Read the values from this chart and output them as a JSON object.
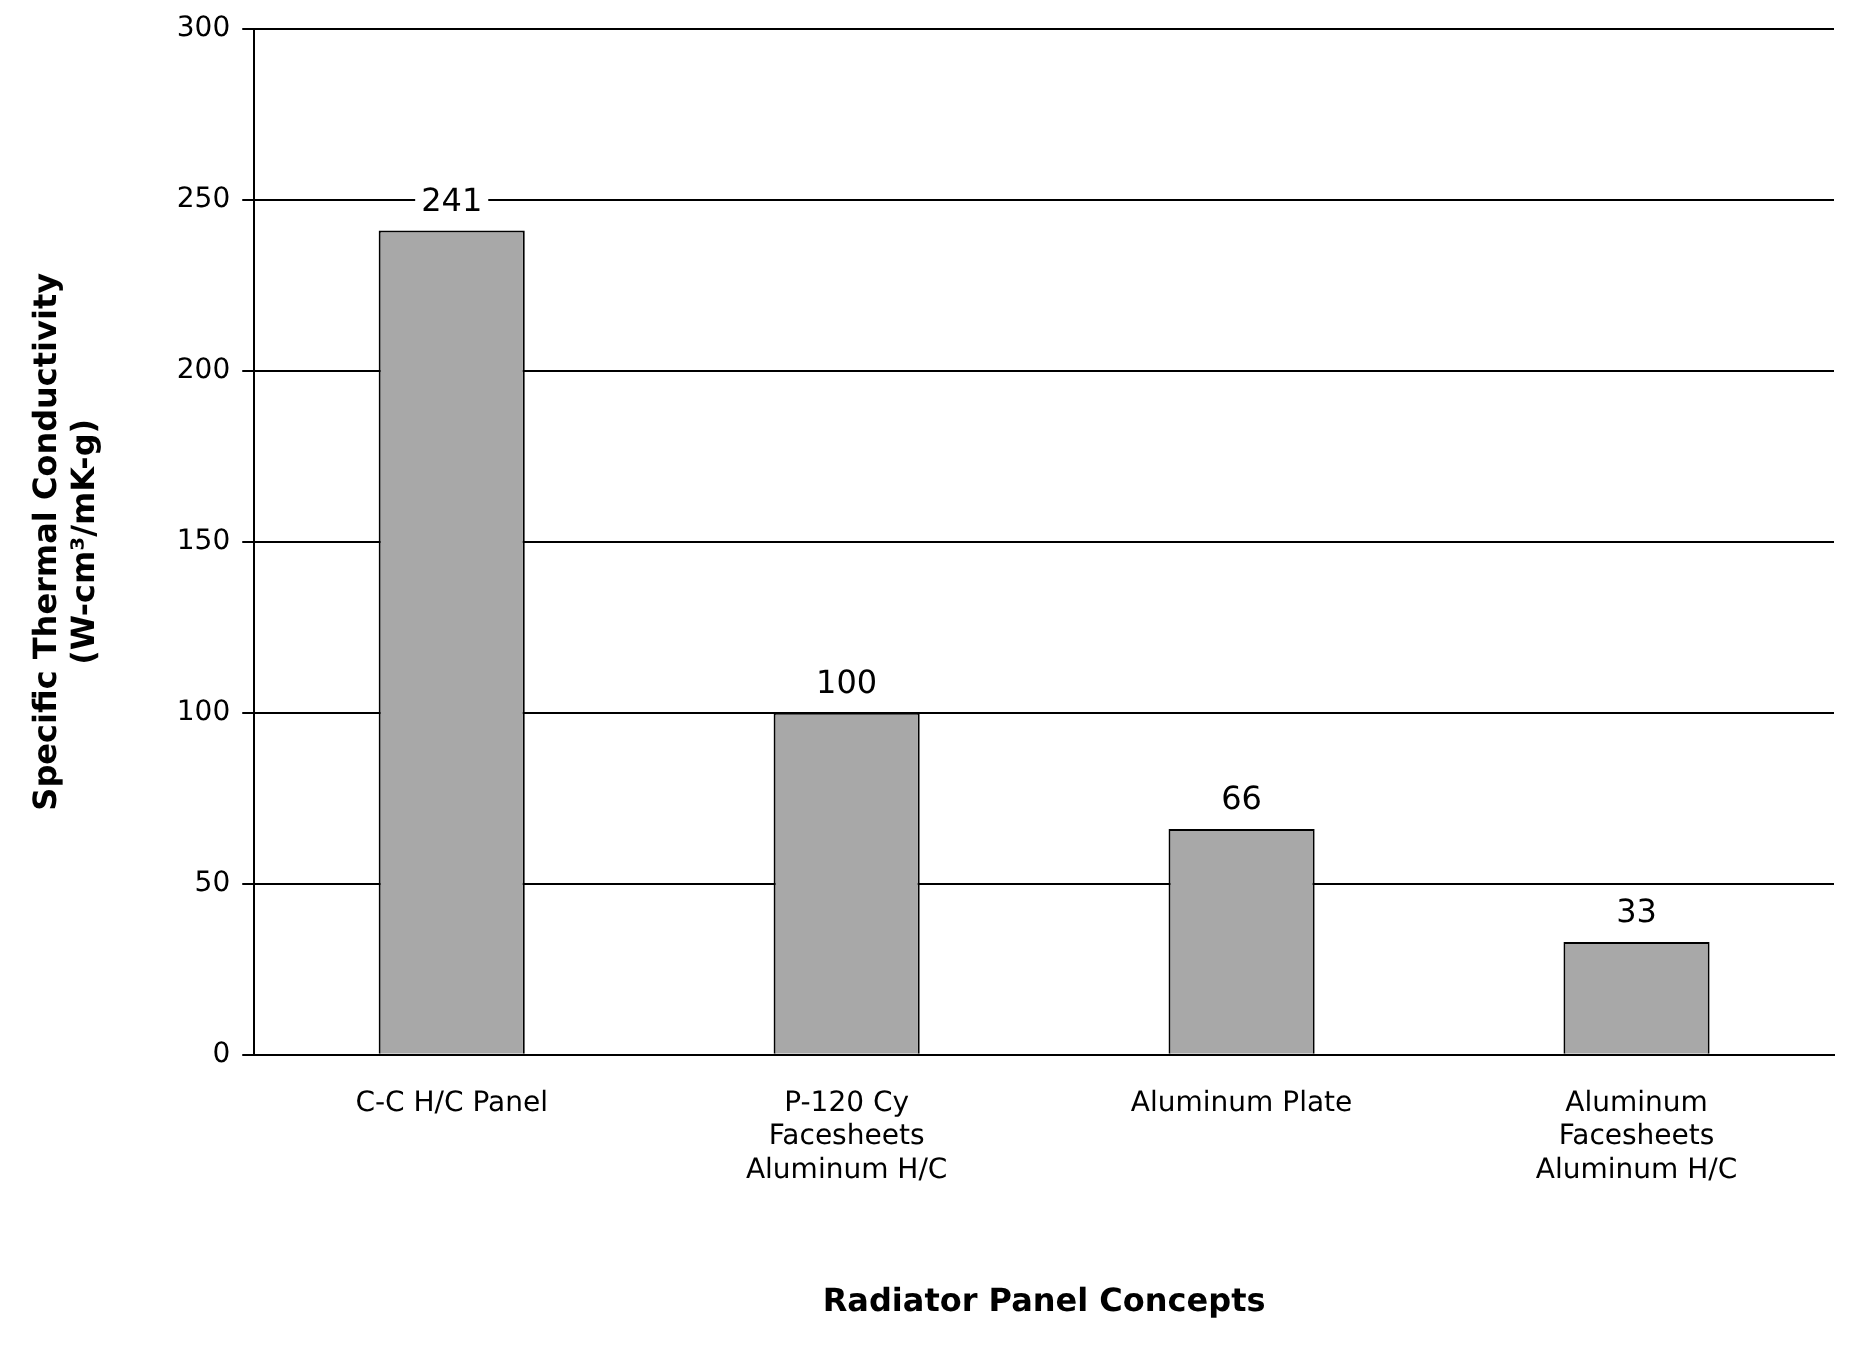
{
  "chart_data": {
    "type": "bar",
    "xlabel": "Radiator Panel Concepts",
    "ylabel": "Specific Thermal Conductivity\n(W-cm³/mK-g)",
    "categories": [
      "C-C H/C Panel",
      "P-120 Cy Facesheets Aluminum H/C",
      "Aluminum Plate",
      "Aluminum Facesheets Aluminum H/C"
    ],
    "values": [
      241,
      100,
      66,
      33
    ],
    "color": "#a8a8a8",
    "ylim": [
      0,
      300
    ],
    "yticks": [
      0,
      50,
      100,
      150,
      200,
      250,
      300
    ],
    "grid": "y",
    "data_labels": true,
    "legend": false
  }
}
